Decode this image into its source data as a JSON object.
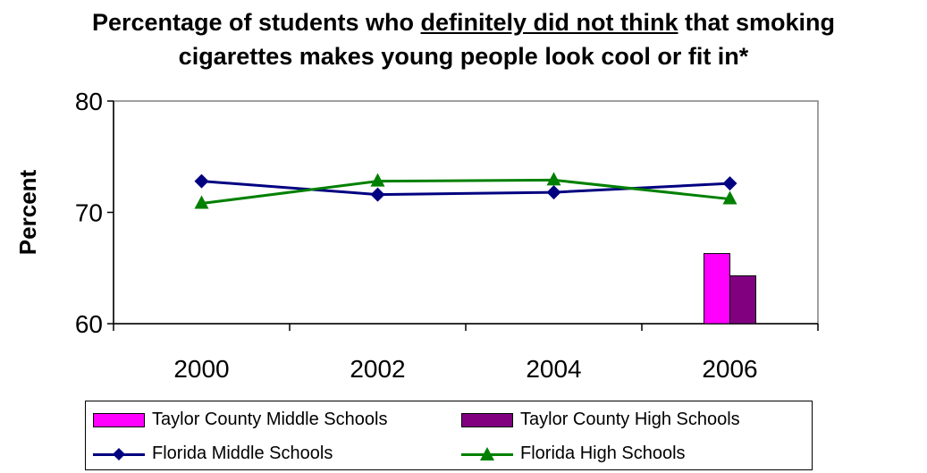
{
  "title_line1_a": "Percentage of students who ",
  "title_line1_u": "definitely did not think",
  "title_line1_b": " that smoking",
  "title_line2": "cigarettes makes young people look cool or fit in*",
  "chart_data": {
    "type": "line",
    "title": "Percentage of students who definitely did not think that smoking cigarettes makes young people look cool or fit in*",
    "xlabel": "",
    "ylabel": "Percent",
    "categories": [
      "2000",
      "2002",
      "2004",
      "2006"
    ],
    "ylim": [
      60,
      80
    ],
    "yticks": [
      "60",
      "70",
      "80"
    ],
    "grid": false,
    "legend_position": "bottom",
    "series": [
      {
        "name": "Taylor County Middle Schools",
        "kind": "bar",
        "color": "#ff00ff",
        "values": [
          null,
          null,
          null,
          66.3
        ]
      },
      {
        "name": "Taylor County High Schools",
        "kind": "bar",
        "color": "#800080",
        "values": [
          null,
          null,
          null,
          64.3
        ]
      },
      {
        "name": "Florida Middle Schools",
        "kind": "line",
        "marker": "diamond",
        "color": "#000080",
        "values": [
          72.8,
          71.6,
          71.8,
          72.6
        ]
      },
      {
        "name": "Florida High Schools",
        "kind": "line",
        "marker": "triangle",
        "color": "#008000",
        "values": [
          70.8,
          72.8,
          72.9,
          71.2
        ]
      }
    ]
  }
}
